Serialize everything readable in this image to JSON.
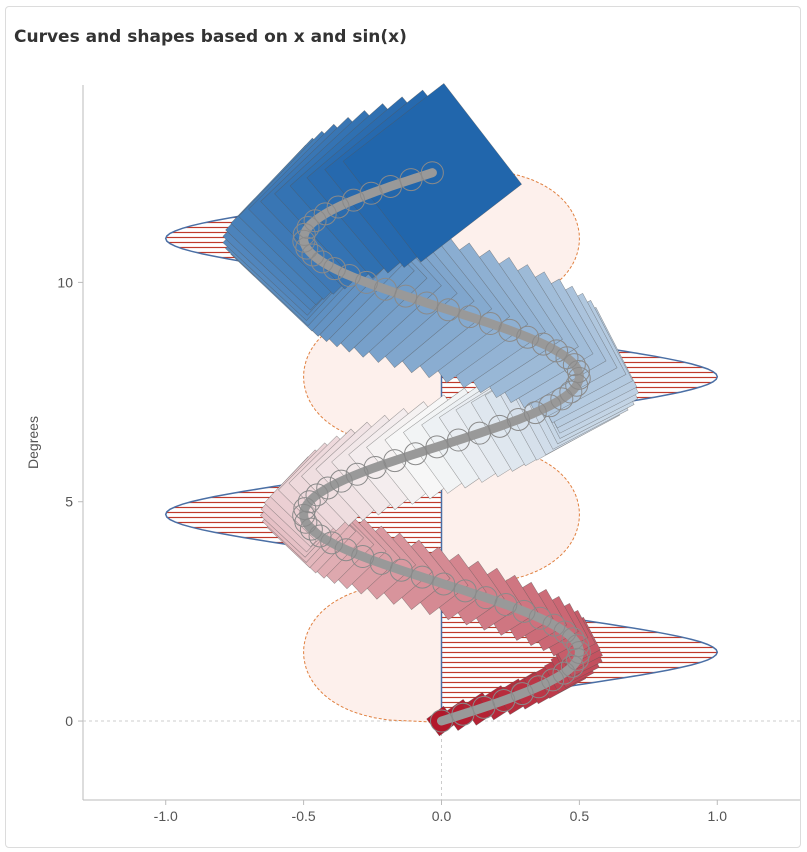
{
  "chart_data": {
    "type": "line",
    "title": "Curves and shapes based on x and sin(x)",
    "xlabel": "",
    "ylabel": "Degrees",
    "xlim": [
      -1.3,
      1.3
    ],
    "ylim": [
      -1.8,
      14.5
    ],
    "x_ticks": [
      "-1.0",
      "-0.5",
      "0.0",
      "0.5",
      "1.0"
    ],
    "x_tick_values": [
      -1.0,
      -0.5,
      0.0,
      0.5,
      1.0
    ],
    "y_ticks": [
      "0",
      "5",
      "10"
    ],
    "y_tick_values": [
      0,
      5,
      10
    ],
    "grid": false,
    "zero_lines": true,
    "series": [
      {
        "kind": "curve",
        "description_x": "0.5*sin(t)",
        "t_range": [
          0,
          12.5
        ],
        "line_color": "#999999",
        "marker": "circle"
      },
      {
        "kind": "area-right",
        "peaks_y": [
          1.57,
          7.85
        ],
        "peak_x": 1.0,
        "fill": "hatched-red",
        "stroke": "#4a6fa5"
      },
      {
        "kind": "area-left",
        "peaks_y": [
          4.71,
          11.0
        ],
        "peak_x": -1.0,
        "fill": "hatched-red",
        "stroke": "#4a6fa5"
      },
      {
        "kind": "dashed-blob",
        "centers_y": [
          1.57,
          4.71,
          7.85,
          11.0
        ],
        "side": [
          -1,
          1,
          -1,
          1
        ],
        "peak_x": 0.5,
        "fill": "#fdf0ec",
        "stroke": "#e08040"
      },
      {
        "kind": "diamonds",
        "colormap": "red-white-blue",
        "stroke": "#555555"
      }
    ]
  },
  "colors": {
    "dark_red": "#b2182b",
    "light": "#f7f7f7",
    "dark_blue": "#2166ac",
    "hatch": "#c0392b",
    "outline_blue": "#4a6fa5",
    "dash_orange": "#e08040",
    "blob_fill": "#fdf0ec",
    "curve_gray": "#999999"
  }
}
